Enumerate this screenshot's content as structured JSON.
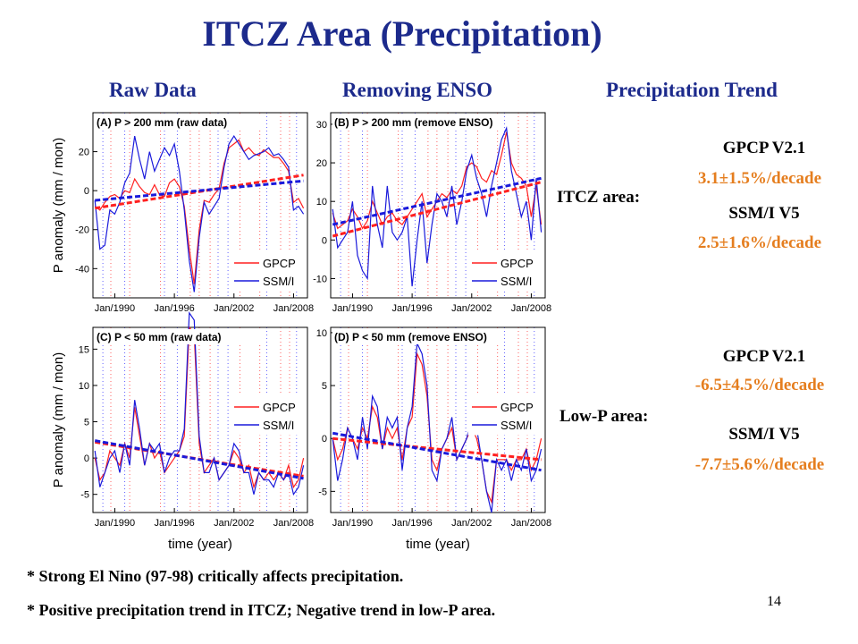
{
  "title": "ITCZ Area (Precipitation)",
  "column_heads": {
    "raw": "Raw Data",
    "enso": "Removing ENSO",
    "trend": "Precipitation Trend"
  },
  "trend": {
    "itcz": {
      "label": "ITCZ area:",
      "gpcp_name": "GPCP V2.1",
      "gpcp_value": "3.1±1.5%/decade",
      "ssmi_name": "SSM/I V5",
      "ssmi_value": "2.5±1.6%/decade"
    },
    "lowp": {
      "label": "Low-P area:",
      "gpcp_name": "GPCP V2.1",
      "gpcp_value": "-6.5±4.5%/decade",
      "ssmi_name": "SSM/I V5",
      "ssmi_value": "-7.7±5.6%/decade"
    }
  },
  "notes": [
    "* Strong El Nino (97-98) critically affects precipitation.",
    "* Positive precipitation trend in ITCZ; Negative trend in low-P area."
  ],
  "page_number": "14",
  "colors": {
    "gpcp": "#ff2020",
    "ssmi": "#1a1adb",
    "title": "#1c2a8c",
    "trend_value": "#e57e1f"
  },
  "chart_data": [
    {
      "type": "line",
      "title": "(A) P > 200 mm (raw data)",
      "ylabel": "P anomaly (mm / mon)",
      "xlabel": "",
      "xlim": [
        1987.8,
        2009.4
      ],
      "ylim": [
        -55,
        40
      ],
      "yticks": [
        -40,
        -20,
        0,
        20
      ],
      "xticks": [
        1990,
        1996,
        2002,
        2008
      ],
      "xticklabels": [
        "Jan/1990",
        "Jan/1996",
        "Jan/2002",
        "Jan/2008"
      ],
      "legend": "bottom-right",
      "x": [
        1988,
        1988.5,
        1989,
        1989.5,
        1990,
        1990.5,
        1991,
        1991.5,
        1992,
        1992.5,
        1993,
        1993.5,
        1994,
        1994.5,
        1995,
        1995.5,
        1996,
        1996.5,
        1997,
        1997.5,
        1998,
        1998.5,
        1999,
        1999.5,
        2000,
        2000.5,
        2001,
        2001.5,
        2002,
        2002.5,
        2003,
        2003.5,
        2004,
        2004.5,
        2005,
        2005.5,
        2006,
        2006.5,
        2007,
        2007.5,
        2008,
        2008.5,
        2009
      ],
      "series": [
        {
          "name": "GPCP",
          "values": [
            -8,
            -10,
            -6,
            -3,
            -2,
            -4,
            0,
            -1,
            6,
            2,
            -1,
            -2,
            3,
            -2,
            -3,
            4,
            6,
            2,
            -8,
            -30,
            -48,
            -20,
            -5,
            -6,
            -2,
            1,
            14,
            22,
            24,
            26,
            20,
            22,
            19,
            18,
            21,
            19,
            17,
            17,
            14,
            10,
            -6,
            -4,
            -9
          ]
        },
        {
          "name": "SSM/I",
          "values": [
            -5,
            -30,
            -28,
            -10,
            -12,
            -6,
            4,
            9,
            28,
            16,
            6,
            20,
            10,
            16,
            22,
            18,
            24,
            10,
            -10,
            -36,
            -52,
            -24,
            -6,
            -12,
            -8,
            -4,
            12,
            24,
            28,
            24,
            20,
            16,
            18,
            19,
            20,
            22,
            18,
            19,
            16,
            12,
            -10,
            -8,
            -12
          ]
        }
      ],
      "trendlines": [
        {
          "name": "GPCP",
          "x": [
            1988,
            2009
          ],
          "y": [
            -9,
            8
          ]
        },
        {
          "name": "SSM/I",
          "x": [
            1988,
            2009
          ],
          "y": [
            -5,
            5
          ]
        }
      ]
    },
    {
      "type": "line",
      "title": "(B) P > 200 mm (remove ENSO)",
      "ylabel": "",
      "xlabel": "",
      "xlim": [
        1987.8,
        2009.4
      ],
      "ylim": [
        -15,
        33
      ],
      "yticks": [
        -10,
        0,
        10,
        20,
        30
      ],
      "xticks": [
        1990,
        1996,
        2002,
        2008
      ],
      "xticklabels": [
        "Jan/1990",
        "Jan/1996",
        "Jan/2002",
        "Jan/2008"
      ],
      "legend": "bottom-right",
      "x": [
        1988,
        1988.5,
        1989,
        1989.5,
        1990,
        1990.5,
        1991,
        1991.5,
        1992,
        1992.5,
        1993,
        1993.5,
        1994,
        1994.5,
        1995,
        1995.5,
        1996,
        1996.5,
        1997,
        1997.5,
        1998,
        1998.5,
        1999,
        1999.5,
        2000,
        2000.5,
        2001,
        2001.5,
        2002,
        2002.5,
        2003,
        2003.5,
        2004,
        2004.5,
        2005,
        2005.5,
        2006,
        2006.5,
        2007,
        2007.5,
        2008,
        2008.5,
        2009
      ],
      "series": [
        {
          "name": "GPCP",
          "values": [
            7,
            3,
            4,
            5,
            8,
            6,
            3,
            5,
            10,
            7,
            4,
            6,
            7,
            5,
            4,
            6,
            8,
            10,
            12,
            6,
            8,
            10,
            12,
            11,
            13,
            12,
            14,
            19,
            20,
            19,
            16,
            15,
            18,
            17,
            22,
            28,
            20,
            17,
            16,
            14,
            6,
            14,
            4
          ]
        },
        {
          "name": "SSM/I",
          "values": [
            8,
            -2,
            0,
            2,
            10,
            -4,
            -8,
            -10,
            14,
            4,
            -2,
            14,
            2,
            0,
            2,
            6,
            -12,
            0,
            10,
            -6,
            4,
            12,
            10,
            6,
            14,
            4,
            10,
            18,
            22,
            16,
            12,
            6,
            14,
            20,
            26,
            29,
            18,
            12,
            6,
            10,
            0,
            16,
            2
          ]
        }
      ],
      "trendlines": [
        {
          "name": "GPCP",
          "x": [
            1988,
            2009
          ],
          "y": [
            1,
            15
          ]
        },
        {
          "name": "SSM/I",
          "x": [
            1988,
            2009
          ],
          "y": [
            4,
            16
          ]
        }
      ]
    },
    {
      "type": "line",
      "title": "(C) P < 50 mm (raw data)",
      "ylabel": "P anomaly (mm / mon)",
      "xlabel": "time (year)",
      "xlim": [
        1987.8,
        2009.4
      ],
      "ylim": [
        -7.5,
        18
      ],
      "yticks": [
        -5,
        0,
        5,
        10,
        15
      ],
      "xticks": [
        1990,
        1996,
        2002,
        2008
      ],
      "xticklabels": [
        "Jan/1990",
        "Jan/1996",
        "Jan/2002",
        "Jan/2008"
      ],
      "legend": "top-right",
      "x": [
        1988,
        1988.5,
        1989,
        1989.5,
        1990,
        1990.5,
        1991,
        1991.5,
        1992,
        1992.5,
        1993,
        1993.5,
        1994,
        1994.5,
        1995,
        1995.5,
        1996,
        1996.5,
        1997,
        1997.5,
        1998,
        1998.5,
        1999,
        1999.5,
        2000,
        2000.5,
        2001,
        2001.5,
        2002,
        2002.5,
        2003,
        2003.5,
        2004,
        2004.5,
        2005,
        2005.5,
        2006,
        2006.5,
        2007,
        2007.5,
        2008,
        2008.5,
        2009
      ],
      "series": [
        {
          "name": "GPCP",
          "values": [
            0,
            -3,
            -2,
            1,
            0,
            -1,
            2,
            0,
            7,
            3,
            -1,
            2,
            0,
            1,
            -2,
            -1,
            0,
            1,
            3,
            18,
            17,
            2,
            -2,
            -1,
            0,
            -3,
            -2,
            -1,
            1,
            0,
            -2,
            -1,
            -4,
            -2,
            -3,
            -2,
            -3,
            -2,
            -3,
            -1,
            -4,
            -3,
            0
          ]
        },
        {
          "name": "SSM/I",
          "values": [
            1,
            -4,
            -2,
            0,
            1,
            -2,
            2,
            -1,
            8,
            4,
            -1,
            2,
            1,
            2,
            -2,
            0,
            1,
            1,
            4,
            20,
            19,
            3,
            -2,
            -2,
            0,
            -3,
            -2,
            -1,
            2,
            1,
            -2,
            -2,
            -5,
            -2,
            -3,
            -3,
            -4,
            -2,
            -3,
            -2,
            -5,
            -4,
            -1
          ]
        }
      ],
      "trendlines": [
        {
          "name": "GPCP",
          "x": [
            1988,
            2009
          ],
          "y": [
            2.2,
            -2.5
          ]
        },
        {
          "name": "SSM/I",
          "x": [
            1988,
            2009
          ],
          "y": [
            2.4,
            -2.8
          ]
        }
      ]
    },
    {
      "type": "line",
      "title": "(D) P < 50 mm (remove ENSO)",
      "ylabel": "",
      "xlabel": "time (year)",
      "xlim": [
        1987.8,
        2009.4
      ],
      "ylim": [
        -7,
        10.5
      ],
      "yticks": [
        -5,
        0,
        5,
        10
      ],
      "xticks": [
        1990,
        1996,
        2002,
        2008
      ],
      "xticklabels": [
        "Jan/1990",
        "Jan/1996",
        "Jan/2002",
        "Jan/2008"
      ],
      "legend": "top-right",
      "x": [
        1988,
        1988.5,
        1989,
        1989.5,
        1990,
        1990.5,
        1991,
        1991.5,
        1992,
        1992.5,
        1993,
        1993.5,
        1994,
        1994.5,
        1995,
        1995.5,
        1996,
        1996.5,
        1997,
        1997.5,
        1998,
        1998.5,
        1999,
        1999.5,
        2000,
        2000.5,
        2001,
        2001.5,
        2002,
        2002.5,
        2003,
        2003.5,
        2004,
        2004.5,
        2005,
        2005.5,
        2006,
        2006.5,
        2007,
        2007.5,
        2008,
        2008.5,
        2009
      ],
      "series": [
        {
          "name": "GPCP",
          "values": [
            0,
            -2,
            -1,
            1,
            0,
            -1,
            1,
            0,
            3,
            2,
            -1,
            1,
            0,
            1,
            -2,
            1,
            2,
            8,
            7,
            4,
            -2,
            -3,
            -1,
            0,
            1,
            -2,
            -1,
            0,
            1,
            0,
            -2,
            -5,
            -6,
            -2,
            -2,
            -2,
            -3,
            -2,
            -2,
            -1,
            -3,
            -2,
            0
          ]
        },
        {
          "name": "SSM/I",
          "values": [
            0,
            -4,
            -2,
            1,
            0,
            -2,
            2,
            -1,
            4,
            3,
            -1,
            2,
            1,
            2,
            -3,
            1,
            3,
            9,
            8,
            5,
            -3,
            -4,
            -1,
            0,
            2,
            -2,
            -1,
            0,
            2,
            1,
            -2,
            -5,
            -7,
            -2,
            -3,
            -2,
            -4,
            -2,
            -3,
            -1,
            -4,
            -3,
            -1
          ]
        }
      ],
      "trendlines": [
        {
          "name": "GPCP",
          "x": [
            1988,
            2009
          ],
          "y": [
            0,
            -2
          ]
        },
        {
          "name": "SSM/I",
          "x": [
            1988,
            2009
          ],
          "y": [
            0.5,
            -3
          ]
        }
      ]
    }
  ]
}
